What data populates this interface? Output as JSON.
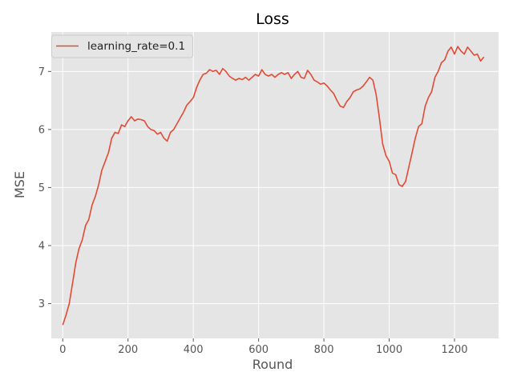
{
  "chart_data": {
    "type": "line",
    "title": "Loss",
    "xlabel": "Round",
    "ylabel": "MSE",
    "xlim": [
      -35,
      1335
    ],
    "ylim": [
      2.4,
      7.68
    ],
    "xticks": [
      0,
      200,
      400,
      600,
      800,
      1000,
      1200
    ],
    "yticks": [
      3,
      4,
      5,
      6,
      7
    ],
    "grid": true,
    "legend": "upper-left",
    "series": [
      {
        "name": "learning_rate=0.1",
        "color": "#e24a33",
        "x": [
          0,
          10,
          20,
          30,
          40,
          50,
          60,
          70,
          80,
          90,
          100,
          110,
          120,
          130,
          140,
          150,
          160,
          170,
          180,
          190,
          200,
          210,
          220,
          230,
          240,
          250,
          260,
          270,
          280,
          290,
          300,
          310,
          320,
          330,
          340,
          350,
          360,
          370,
          380,
          390,
          400,
          410,
          420,
          430,
          440,
          450,
          460,
          470,
          480,
          490,
          500,
          510,
          520,
          530,
          540,
          550,
          560,
          570,
          580,
          590,
          600,
          610,
          620,
          630,
          640,
          650,
          660,
          670,
          680,
          690,
          700,
          710,
          720,
          730,
          740,
          750,
          760,
          770,
          780,
          790,
          800,
          810,
          820,
          830,
          840,
          850,
          860,
          870,
          880,
          890,
          900,
          910,
          920,
          930,
          940,
          950,
          960,
          970,
          980,
          990,
          1000,
          1010,
          1020,
          1030,
          1040,
          1050,
          1060,
          1070,
          1080,
          1090,
          1100,
          1110,
          1120,
          1130,
          1140,
          1150,
          1160,
          1170,
          1180,
          1190,
          1200,
          1210,
          1220,
          1230,
          1240,
          1250,
          1260,
          1270,
          1280,
          1290
        ],
        "y": [
          2.63,
          2.8,
          3.0,
          3.35,
          3.7,
          3.95,
          4.1,
          4.35,
          4.45,
          4.7,
          4.85,
          5.05,
          5.3,
          5.45,
          5.6,
          5.85,
          5.95,
          5.93,
          6.08,
          6.05,
          6.15,
          6.22,
          6.15,
          6.18,
          6.17,
          6.15,
          6.05,
          6.0,
          5.98,
          5.92,
          5.95,
          5.85,
          5.8,
          5.95,
          6.0,
          6.1,
          6.2,
          6.3,
          6.42,
          6.48,
          6.55,
          6.72,
          6.85,
          6.95,
          6.97,
          7.03,
          7.0,
          7.02,
          6.95,
          7.05,
          7.0,
          6.92,
          6.88,
          6.85,
          6.88,
          6.86,
          6.9,
          6.85,
          6.9,
          6.95,
          6.92,
          7.03,
          6.95,
          6.92,
          6.95,
          6.9,
          6.95,
          6.98,
          6.95,
          6.98,
          6.88,
          6.95,
          7.0,
          6.9,
          6.88,
          7.02,
          6.95,
          6.85,
          6.82,
          6.78,
          6.8,
          6.75,
          6.68,
          6.62,
          6.5,
          6.4,
          6.38,
          6.48,
          6.55,
          6.65,
          6.68,
          6.7,
          6.75,
          6.82,
          6.9,
          6.85,
          6.6,
          6.2,
          5.75,
          5.55,
          5.45,
          5.25,
          5.22,
          5.05,
          5.02,
          5.1,
          5.35,
          5.6,
          5.85,
          6.05,
          6.1,
          6.4,
          6.55,
          6.65,
          6.9,
          7.0,
          7.15,
          7.2,
          7.35,
          7.42,
          7.3,
          7.43,
          7.35,
          7.3,
          7.42,
          7.35,
          7.28,
          7.3,
          7.18,
          7.25
        ]
      }
    ]
  }
}
